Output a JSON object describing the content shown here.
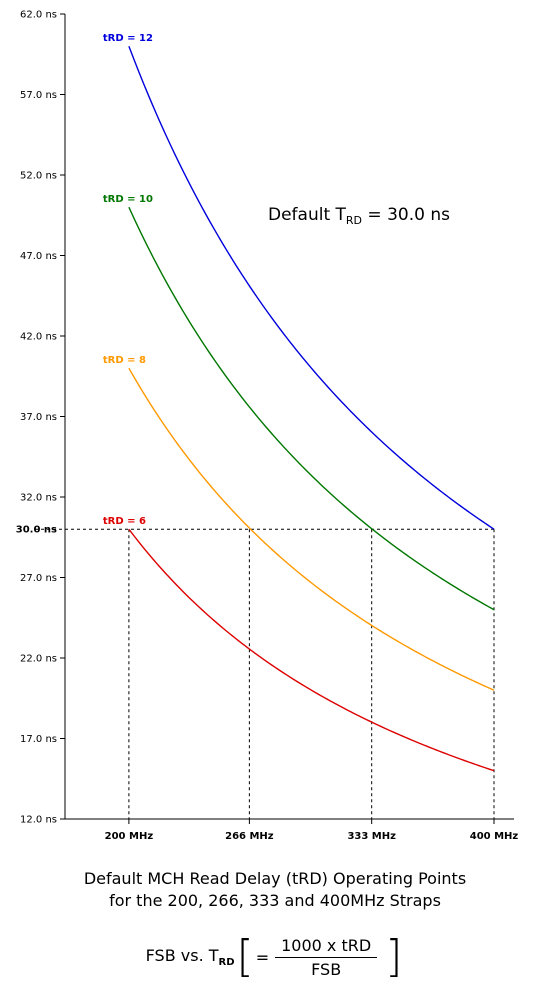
{
  "chart_data": {
    "type": "line",
    "x": [
      200,
      266,
      333,
      400
    ],
    "x_tick_labels": [
      "200 MHz",
      "266 MHz",
      "333 MHz",
      "400 MHz"
    ],
    "xlim": [
      165,
      400
    ],
    "ylim": [
      12.0,
      62.0
    ],
    "y_ticks": [
      12.0,
      17.0,
      22.0,
      27.0,
      32.0,
      37.0,
      42.0,
      47.0,
      52.0,
      57.0,
      62.0
    ],
    "y_tick_labels": [
      "12.0 ns",
      "17.0 ns",
      "22.0 ns",
      "27.0 ns",
      "32.0 ns",
      "37.0 ns",
      "42.0 ns",
      "47.0 ns",
      "52.0 ns",
      "57.0 ns",
      "62.0 ns"
    ],
    "highlight_y": 30.0,
    "highlight_y_label": "30.0 ns",
    "series": [
      {
        "name": "tRD = 12",
        "trd": 12,
        "color": "#0000dd",
        "x_range": [
          200,
          400
        ]
      },
      {
        "name": "tRD = 10",
        "trd": 10,
        "color": "#007700",
        "x_range": [
          200,
          400
        ]
      },
      {
        "name": "tRD = 8",
        "trd": 8,
        "color": "#ff9900",
        "x_range": [
          200,
          400
        ]
      },
      {
        "name": "tRD = 6",
        "trd": 6,
        "color": "#dd0000",
        "x_range": [
          200,
          400
        ]
      }
    ],
    "formula": "1000 x tRD / FSB",
    "grid": false
  },
  "annotation": {
    "prefix": "Default T",
    "sub": "RD",
    "suffix": " = 30.0 ns"
  },
  "caption": {
    "line1": "Default MCH Read Delay (tRD) Operating Points",
    "line2": "for the 200, 266, 333 and 400MHz Straps"
  },
  "formula": {
    "lhs_prefix": "FSB vs. T",
    "lhs_sub": "RD",
    "equals": "=",
    "numerator": "1000 x tRD",
    "denominator": "FSB",
    "bracket_left": "[",
    "bracket_right": "]"
  }
}
